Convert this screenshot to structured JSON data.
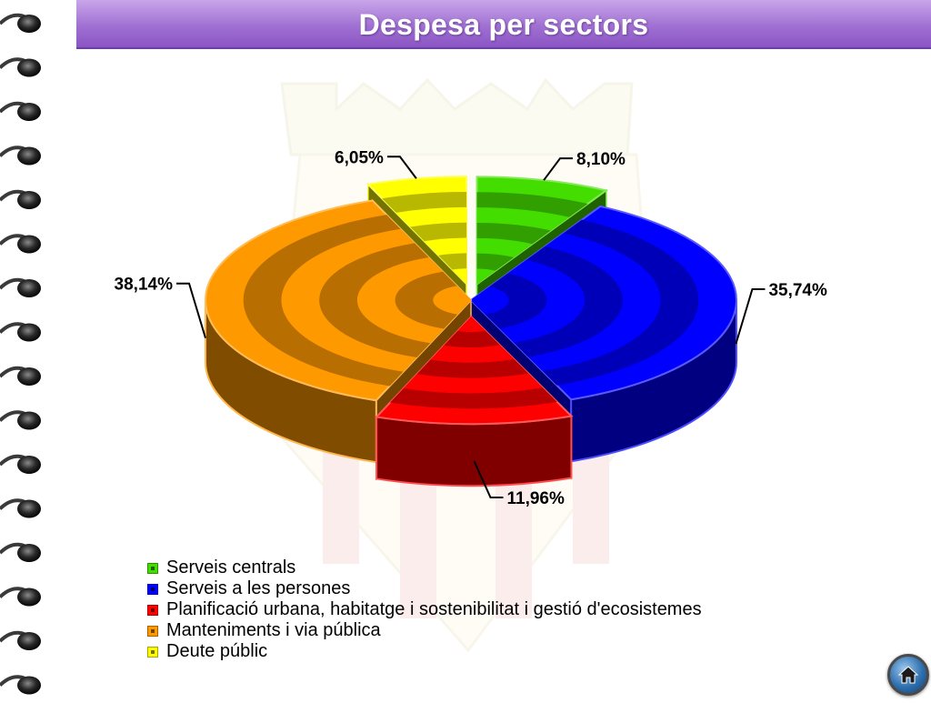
{
  "slide": {
    "title": "Despesa per sectors"
  },
  "chart_data": {
    "type": "pie",
    "title": "Despesa per sectors",
    "slices": [
      {
        "name": "Serveis centrals",
        "value": 8.1,
        "label": "8,10%",
        "color": "#44dd00"
      },
      {
        "name": "Serveis a les persones",
        "value": 35.74,
        "label": "35,74%",
        "color": "#0000ff"
      },
      {
        "name": "Planificació urbana, habitatge i sostenibilitat i gestió d'ecosistemes",
        "value": 11.96,
        "label": "11,96%",
        "color": "#ff0000"
      },
      {
        "name": "Manteniments i via pública",
        "value": 38.14,
        "label": "38,14%",
        "color": "#ff9900"
      },
      {
        "name": "Deute públic",
        "value": 6.05,
        "label": "6,05%",
        "color": "#ffff00"
      }
    ],
    "legend_position": "bottom-left",
    "exploded": [
      "Serveis centrals",
      "Deute públic",
      "Planificació urbana, habitatge i sostenibilitat i gestió d'ecosistemes"
    ],
    "style": "3d-pie"
  },
  "navigation": {
    "home_icon": "home-icon"
  },
  "decor": {
    "binding_icon": "spiral-ring-icon",
    "watermark_icon": "coat-of-arms-watermark"
  }
}
